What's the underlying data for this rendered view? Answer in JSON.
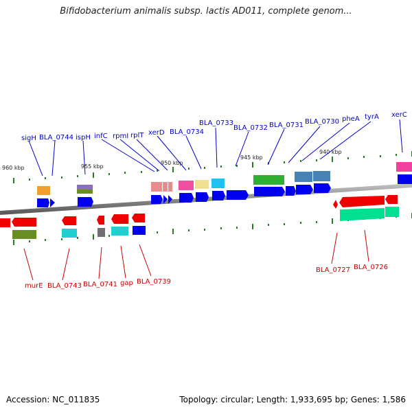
{
  "title": "Bifidobacterium animalis subsp. lactis AD011, complete genom...",
  "footer": {
    "accession": "Accession: NC_011835",
    "summary": "Topology: circular; Length: 1,933,695 bp; Genes: 1,586"
  },
  "colors": {
    "forward_label": "#0000cc",
    "reverse_label": "#cc0000",
    "backbone": "#808080",
    "tick": "#2a7a2a"
  },
  "ticks": [
    "960 kbp",
    "955 kbp",
    "950 kbp",
    "945 kbp",
    "940 kbp"
  ],
  "top_labels": [
    "sigH",
    "BLA_0744",
    "ispH",
    "infC",
    "rpmI",
    "rplT",
    "xerD",
    "BLA_0734",
    "BLA_0733",
    "BLA_0732",
    "BLA_0731",
    "BLA_0730",
    "pheA",
    "tyrA",
    "xerC"
  ],
  "bottom_labels": [
    "murE",
    "BLA_0743",
    "BLA_0741",
    "gap",
    "BLA_0739",
    "BLA_0727",
    "BLA_0726"
  ]
}
